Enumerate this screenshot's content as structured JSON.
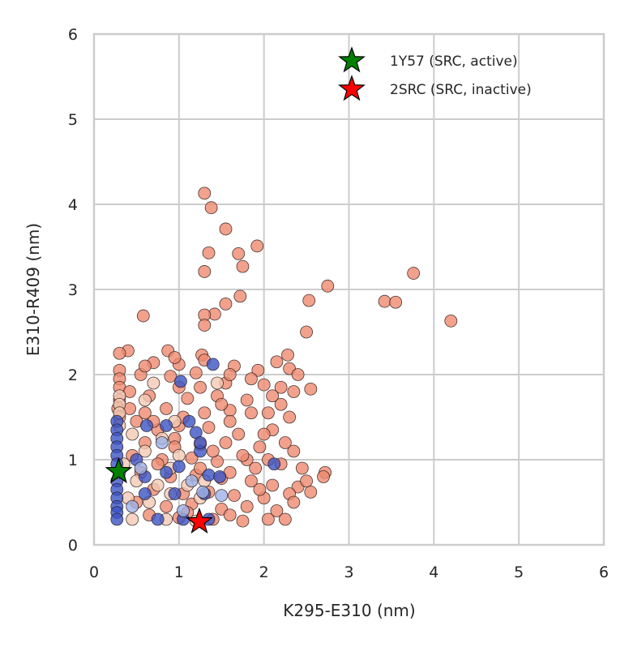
{
  "chart_data": {
    "type": "scatter",
    "title": "",
    "xlabel": "K295-E310 (nm)",
    "ylabel": "E310-R409 (nm)",
    "xlim": [
      0,
      6
    ],
    "ylim": [
      0,
      6
    ],
    "xticks": [
      "0",
      "1",
      "2",
      "3",
      "4",
      "5",
      "6"
    ],
    "yticks": [
      "0",
      "1",
      "2",
      "3",
      "4",
      "5",
      "6"
    ],
    "grid": true,
    "legend_position": "top-right",
    "colors": {
      "grid": "#cccccc",
      "axes_spine": "#cccccc",
      "salmon": "#ee8a6f",
      "pale": "#f2c9b4",
      "blue": "#3b54c4",
      "light_blue": "#9db1e6",
      "marker_edge": "#2a1a1a",
      "active_star": "#008000",
      "inactive_star": "#ff0000"
    },
    "series": [
      {
        "name": "",
        "color": "salmon",
        "points": [
          [
            1.3,
            4.13
          ],
          [
            1.38,
            3.96
          ],
          [
            1.55,
            3.71
          ],
          [
            1.92,
            3.51
          ],
          [
            1.35,
            3.43
          ],
          [
            1.7,
            3.42
          ],
          [
            1.75,
            3.27
          ],
          [
            1.3,
            3.21
          ],
          [
            3.76,
            3.19
          ],
          [
            2.75,
            3.04
          ],
          [
            1.72,
            2.92
          ],
          [
            3.42,
            2.86
          ],
          [
            3.55,
            2.85
          ],
          [
            2.53,
            2.87
          ],
          [
            1.55,
            2.83
          ],
          [
            1.42,
            2.71
          ],
          [
            1.3,
            2.7
          ],
          [
            4.2,
            2.63
          ],
          [
            1.3,
            2.58
          ],
          [
            2.5,
            2.5
          ],
          [
            0.58,
            2.69
          ],
          [
            0.4,
            2.28
          ],
          [
            0.87,
            2.28
          ],
          [
            1.27,
            2.23
          ],
          [
            2.28,
            2.23
          ],
          [
            2.15,
            2.15
          ],
          [
            0.7,
            2.14
          ],
          [
            1.0,
            2.12
          ],
          [
            1.3,
            2.17
          ],
          [
            1.65,
            2.1
          ],
          [
            1.93,
            2.05
          ],
          [
            2.3,
            2.07
          ],
          [
            0.55,
            2.0
          ],
          [
            0.9,
            1.98
          ],
          [
            1.2,
            2.02
          ],
          [
            1.55,
            1.9
          ],
          [
            2.0,
            1.88
          ],
          [
            2.35,
            1.8
          ],
          [
            2.55,
            1.83
          ],
          [
            0.65,
            1.75
          ],
          [
            1.1,
            1.72
          ],
          [
            1.45,
            1.75
          ],
          [
            1.8,
            1.7
          ],
          [
            2.2,
            1.65
          ],
          [
            0.85,
            1.6
          ],
          [
            1.3,
            1.55
          ],
          [
            1.6,
            1.58
          ],
          [
            2.05,
            1.55
          ],
          [
            2.3,
            1.5
          ],
          [
            0.5,
            1.45
          ],
          [
            0.75,
            1.35
          ],
          [
            1.0,
            1.4
          ],
          [
            1.35,
            1.38
          ],
          [
            1.7,
            1.3
          ],
          [
            2.1,
            1.35
          ],
          [
            0.6,
            1.2
          ],
          [
            0.95,
            1.25
          ],
          [
            1.25,
            1.18
          ],
          [
            1.55,
            1.2
          ],
          [
            1.95,
            1.15
          ],
          [
            2.35,
            1.1
          ],
          [
            0.45,
            1.05
          ],
          [
            0.8,
            1.0
          ],
          [
            1.15,
            1.02
          ],
          [
            1.45,
            0.98
          ],
          [
            1.8,
            1.0
          ],
          [
            2.2,
            0.95
          ],
          [
            2.45,
            0.9
          ],
          [
            2.72,
            0.85
          ],
          [
            2.7,
            0.8
          ],
          [
            0.55,
            0.85
          ],
          [
            0.9,
            0.8
          ],
          [
            1.2,
            0.82
          ],
          [
            1.5,
            0.78
          ],
          [
            1.85,
            0.75
          ],
          [
            2.1,
            0.7
          ],
          [
            2.4,
            0.68
          ],
          [
            0.7,
            0.65
          ],
          [
            1.05,
            0.6
          ],
          [
            1.35,
            0.62
          ],
          [
            1.65,
            0.58
          ],
          [
            2.0,
            0.55
          ],
          [
            2.3,
            0.6
          ],
          [
            2.55,
            0.62
          ],
          [
            0.5,
            0.5
          ],
          [
            0.85,
            0.45
          ],
          [
            1.15,
            0.48
          ],
          [
            1.5,
            0.42
          ],
          [
            1.8,
            0.45
          ],
          [
            2.15,
            0.4
          ],
          [
            0.65,
            0.35
          ],
          [
            1.0,
            0.32
          ],
          [
            1.4,
            0.3
          ],
          [
            1.75,
            0.28
          ],
          [
            2.05,
            0.3
          ],
          [
            2.25,
            0.3
          ],
          [
            0.3,
            2.05
          ],
          [
            0.3,
            1.95
          ],
          [
            0.3,
            1.85
          ],
          [
            0.3,
            1.7
          ],
          [
            0.28,
            1.6
          ],
          [
            0.3,
            1.5
          ],
          [
            0.3,
            2.25
          ],
          [
            0.42,
            1.8
          ],
          [
            0.42,
            1.6
          ],
          [
            0.6,
            1.55
          ],
          [
            1.0,
            1.85
          ],
          [
            1.6,
            1.45
          ],
          [
            2.0,
            1.3
          ],
          [
            2.25,
            1.2
          ],
          [
            1.9,
            0.9
          ],
          [
            2.5,
            0.75
          ],
          [
            0.75,
            0.95
          ],
          [
            1.25,
            0.9
          ],
          [
            1.6,
            0.85
          ],
          [
            1.95,
            0.65
          ],
          [
            2.35,
            0.5
          ],
          [
            1.1,
            0.38
          ],
          [
            1.6,
            0.35
          ],
          [
            0.95,
            1.15
          ],
          [
            1.4,
            1.1
          ],
          [
            1.75,
            1.05
          ],
          [
            2.05,
            1.0
          ],
          [
            0.7,
            1.45
          ],
          [
            1.05,
            1.5
          ],
          [
            1.5,
            1.65
          ],
          [
            1.85,
            1.55
          ],
          [
            2.2,
            1.85
          ],
          [
            2.4,
            2.0
          ],
          [
            0.95,
            2.2
          ],
          [
            1.6,
            2.0
          ],
          [
            1.85,
            1.95
          ],
          [
            2.1,
            1.75
          ],
          [
            1.25,
            1.85
          ],
          [
            0.6,
            2.1
          ]
        ]
      },
      {
        "name": "",
        "color": "pale",
        "points": [
          [
            0.3,
            1.75
          ],
          [
            0.3,
            1.65
          ],
          [
            0.3,
            1.55
          ],
          [
            0.3,
            1.4
          ],
          [
            0.45,
            1.3
          ],
          [
            0.6,
            1.1
          ],
          [
            0.8,
            1.25
          ],
          [
            1.0,
            1.05
          ],
          [
            0.35,
            0.95
          ],
          [
            0.5,
            0.75
          ],
          [
            0.75,
            0.7
          ],
          [
            0.4,
            0.55
          ],
          [
            0.65,
            0.5
          ],
          [
            0.9,
            0.6
          ],
          [
            1.1,
            0.7
          ],
          [
            1.3,
            0.75
          ],
          [
            0.45,
            0.3
          ],
          [
            0.85,
            0.3
          ],
          [
            1.2,
            0.28
          ],
          [
            1.45,
            1.9
          ],
          [
            0.95,
            1.45
          ],
          [
            0.7,
            1.9
          ],
          [
            0.6,
            1.7
          ],
          [
            0.9,
            0.9
          ],
          [
            1.25,
            0.55
          ]
        ]
      },
      {
        "name": "",
        "color": "blue",
        "points": [
          [
            0.27,
            1.45
          ],
          [
            0.27,
            1.35
          ],
          [
            0.27,
            1.25
          ],
          [
            0.27,
            1.15
          ],
          [
            0.27,
            1.05
          ],
          [
            0.27,
            0.95
          ],
          [
            0.27,
            0.75
          ],
          [
            0.27,
            0.65
          ],
          [
            0.27,
            0.55
          ],
          [
            0.27,
            0.45
          ],
          [
            0.27,
            0.38
          ],
          [
            0.27,
            0.3
          ],
          [
            0.62,
            1.4
          ],
          [
            0.85,
            1.4
          ],
          [
            1.12,
            1.45
          ],
          [
            1.2,
            1.32
          ],
          [
            1.4,
            2.12
          ],
          [
            1.02,
            1.92
          ],
          [
            1.25,
            1.1
          ],
          [
            0.6,
            0.8
          ],
          [
            0.85,
            0.85
          ],
          [
            1.0,
            0.92
          ],
          [
            1.35,
            0.82
          ],
          [
            1.48,
            0.8
          ],
          [
            0.6,
            0.6
          ],
          [
            0.95,
            0.6
          ],
          [
            1.3,
            0.6
          ],
          [
            0.75,
            0.3
          ],
          [
            1.05,
            0.3
          ],
          [
            1.35,
            0.3
          ],
          [
            2.12,
            0.95
          ],
          [
            1.25,
            1.2
          ],
          [
            0.5,
            1.0
          ]
        ]
      },
      {
        "name": "",
        "color": "light_blue",
        "points": [
          [
            0.3,
            0.85
          ],
          [
            0.55,
            0.9
          ],
          [
            0.8,
            1.2
          ],
          [
            1.05,
            0.4
          ],
          [
            1.15,
            0.75
          ],
          [
            1.28,
            0.62
          ],
          [
            1.5,
            0.58
          ],
          [
            0.45,
            0.45
          ]
        ]
      }
    ],
    "markers": [
      {
        "name": "1Y57 (SRC, active)",
        "x": 0.29,
        "y": 0.86,
        "color": "active_star"
      },
      {
        "name": "2SRC (SRC, inactive)",
        "x": 1.24,
        "y": 0.27,
        "color": "inactive_star"
      }
    ]
  }
}
